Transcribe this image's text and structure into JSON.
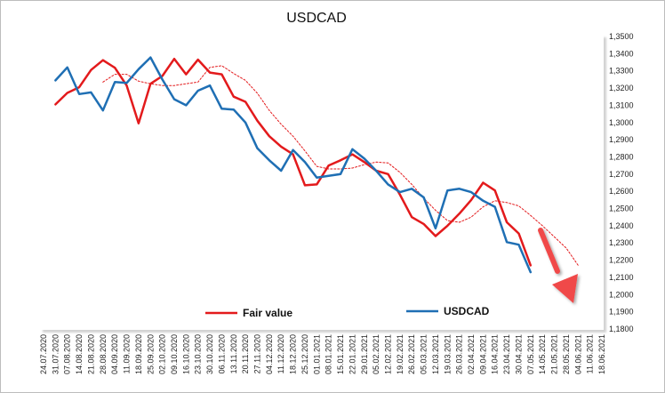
{
  "chart_data": {
    "type": "line",
    "title": "USDCAD",
    "x": [
      "24.07.2020",
      "31.07.2020",
      "07.08.2020",
      "14.08.2020",
      "21.08.2020",
      "28.08.2020",
      "04.09.2020",
      "11.09.2020",
      "18.09.2020",
      "25.09.2020",
      "02.10.2020",
      "09.10.2020",
      "16.10.2020",
      "23.10.2020",
      "30.10.2020",
      "06.11.2020",
      "13.11.2020",
      "20.11.2020",
      "27.11.2020",
      "04.12.2020",
      "11.12.2020",
      "18.12.2020",
      "25.12.2020",
      "01.01.2021",
      "08.01.2021",
      "15.01.2021",
      "22.01.2021",
      "29.01.2021",
      "05.02.2021",
      "12.02.2021",
      "19.02.2021",
      "26.02.2021",
      "05.03.2021",
      "12.03.2021",
      "19.03.2021",
      "26.03.2021",
      "02.04.2021",
      "09.04.2021",
      "16.04.2021",
      "23.04.2021",
      "30.04.2021",
      "07.05.2021",
      "14.05.2021",
      "21.05.2021",
      "28.05.2021",
      "04.06.2021",
      "11.06.2021",
      "18.06.2021"
    ],
    "ylim": [
      1.18,
      1.35
    ],
    "y_ticks": [
      "1,1800",
      "1,1900",
      "1,2000",
      "1,2100",
      "1,2200",
      "1,2300",
      "1,2400",
      "1,2500",
      "1,2600",
      "1,2700",
      "1,2800",
      "1,2900",
      "1,3000",
      "1,3100",
      "1,3200",
      "1,3300",
      "1,3400",
      "1,3500"
    ],
    "grid": false,
    "legend": "bottom",
    "series": [
      {
        "name": "Fair value",
        "color": "#e31a1c",
        "style": "solid",
        "values": [
          null,
          1.3105,
          1.3172,
          1.3205,
          1.3305,
          1.3362,
          1.3318,
          1.3215,
          1.2995,
          1.3225,
          1.327,
          1.337,
          1.328,
          1.3365,
          1.329,
          1.328,
          1.315,
          1.312,
          1.301,
          1.292,
          1.286,
          1.2815,
          1.2635,
          1.264,
          1.275,
          1.278,
          1.2815,
          1.277,
          1.272,
          1.27,
          1.258,
          1.245,
          1.241,
          1.234,
          1.24,
          1.247,
          1.255,
          1.265,
          1.2605,
          1.242,
          1.2355,
          1.217,
          null,
          null,
          null,
          null,
          null,
          null
        ]
      },
      {
        "name": "USDCAD",
        "color": "#1f6fb4",
        "style": "solid",
        "values": [
          null,
          1.3245,
          1.332,
          1.3165,
          1.3175,
          1.307,
          1.3235,
          1.323,
          1.331,
          1.3378,
          1.325,
          1.3135,
          1.31,
          1.3185,
          1.3215,
          1.308,
          1.3075,
          1.3,
          1.285,
          1.278,
          1.272,
          1.284,
          1.277,
          1.268,
          1.269,
          1.27,
          1.2845,
          1.279,
          1.272,
          1.264,
          1.2595,
          1.2615,
          1.2565,
          1.2385,
          1.2605,
          1.2615,
          1.2595,
          1.2545,
          1.251,
          1.2305,
          1.229,
          1.213,
          null,
          null,
          null,
          null,
          null,
          null
        ]
      },
      {
        "name": "",
        "color": "#e31a1c",
        "style": "dotted",
        "values": [
          null,
          null,
          null,
          null,
          null,
          1.3235,
          1.328,
          1.328,
          1.324,
          1.3225,
          1.3215,
          1.3215,
          1.3225,
          1.3235,
          1.332,
          1.333,
          1.3285,
          1.3245,
          1.317,
          1.307,
          1.299,
          1.292,
          1.2835,
          1.2745,
          1.273,
          1.273,
          1.2735,
          1.2755,
          1.277,
          1.2765,
          1.271,
          1.264,
          1.256,
          1.249,
          1.243,
          1.242,
          1.245,
          1.251,
          1.2545,
          1.2535,
          1.2515,
          1.246,
          1.24,
          1.2335,
          1.227,
          1.217,
          null,
          null
        ]
      }
    ],
    "annotations": [
      {
        "type": "arrow",
        "direction": "down",
        "color": "#f04848"
      }
    ]
  }
}
